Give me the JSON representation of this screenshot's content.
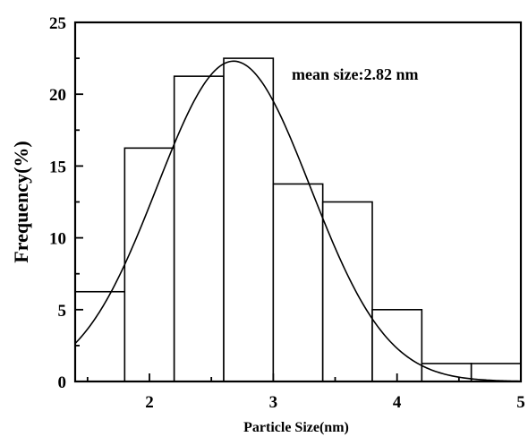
{
  "chart_data": {
    "type": "bar",
    "subtype": "histogram",
    "title": "",
    "xlabel": "Particle Size(nm)",
    "ylabel": "Frequency(%)",
    "xlim": [
      1.4,
      5.0
    ],
    "ylim": [
      0,
      25
    ],
    "x_ticks": [
      2,
      3,
      4,
      5
    ],
    "y_ticks": [
      0,
      5,
      10,
      15,
      20,
      25
    ],
    "bins": [
      {
        "start": 1.4,
        "end": 1.8,
        "value": 6.25
      },
      {
        "start": 1.8,
        "end": 2.2,
        "value": 16.25
      },
      {
        "start": 2.2,
        "end": 2.6,
        "value": 21.25
      },
      {
        "start": 2.6,
        "end": 3.0,
        "value": 22.5
      },
      {
        "start": 3.0,
        "end": 3.4,
        "value": 13.75
      },
      {
        "start": 3.4,
        "end": 3.8,
        "value": 12.5
      },
      {
        "start": 3.8,
        "end": 4.2,
        "value": 5.0
      },
      {
        "start": 4.2,
        "end": 4.6,
        "value": 1.25
      },
      {
        "start": 4.6,
        "end": 5.0,
        "value": 1.25
      }
    ],
    "fit_curve": {
      "type": "gaussian",
      "center": 2.68,
      "sigma": 0.62,
      "amplitude": 22.3
    },
    "annotation": "mean size:2.82 nm",
    "grid": false,
    "colors": {
      "bar_fill": "#ffffff",
      "bar_stroke": "#000000",
      "curve": "#000000"
    }
  }
}
